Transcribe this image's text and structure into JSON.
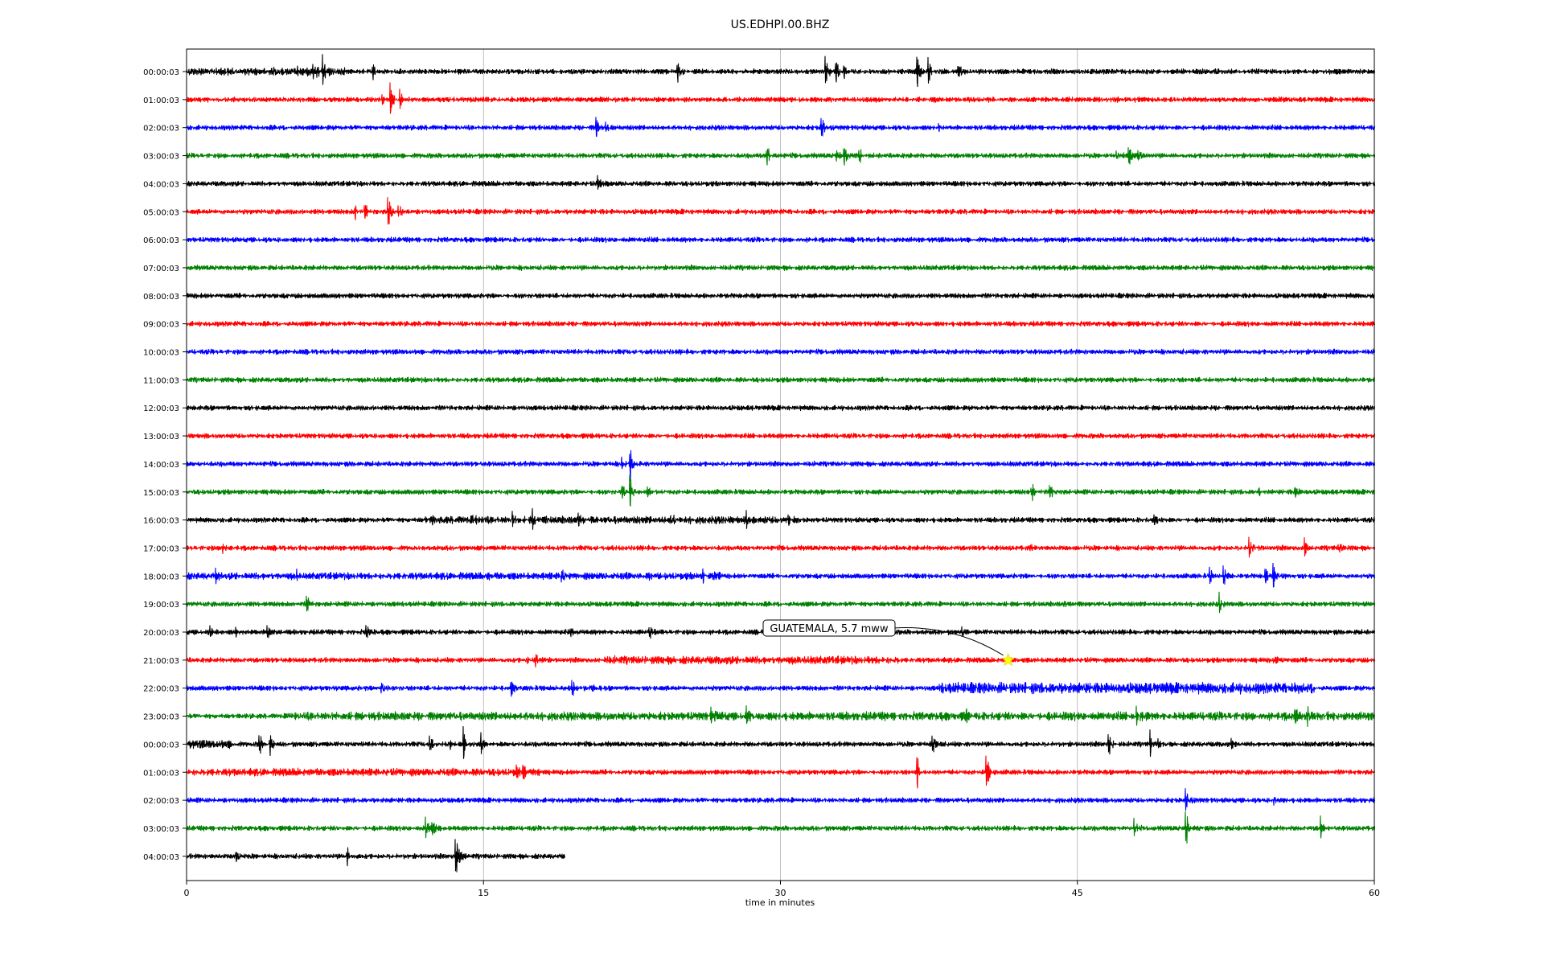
{
  "chart_data": {
    "type": "line",
    "title": "US.EDHPI.00.BHZ",
    "xlabel": "time in minutes",
    "ylabel": "",
    "xlim": [
      0,
      60
    ],
    "x_ticks": [
      "0",
      "15",
      "30",
      "45",
      "60"
    ],
    "x_tick_values": [
      0,
      15,
      30,
      45,
      60
    ],
    "grid": "vertical lines at x ticks",
    "row_labels": [
      "00:00:03",
      "01:00:03",
      "02:00:03",
      "03:00:03",
      "04:00:03",
      "05:00:03",
      "06:00:03",
      "07:00:03",
      "08:00:03",
      "09:00:03",
      "10:00:03",
      "11:00:03",
      "12:00:03",
      "13:00:03",
      "14:00:03",
      "15:00:03",
      "16:00:03",
      "17:00:03",
      "18:00:03",
      "19:00:03",
      "20:00:03",
      "21:00:03",
      "22:00:03",
      "23:00:03",
      "00:00:03",
      "01:00:03",
      "02:00:03",
      "03:00:03",
      "04:00:03"
    ],
    "row_colors": [
      "#000000",
      "#ff0000",
      "#0000ff",
      "#008000"
    ],
    "last_row_end_minute": 19.1,
    "spikes": [
      {
        "row": 0,
        "t": 5.5,
        "amp": 0.5
      },
      {
        "row": 0,
        "t": 6.4,
        "amp": 0.55
      },
      {
        "row": 0,
        "t": 6.9,
        "amp": 0.6
      },
      {
        "row": 0,
        "t": 9.4,
        "amp": 0.55
      },
      {
        "row": 0,
        "t": 24.8,
        "amp": 0.9
      },
      {
        "row": 0,
        "t": 32.3,
        "amp": 0.75
      },
      {
        "row": 0,
        "t": 32.8,
        "amp": 0.6
      },
      {
        "row": 0,
        "t": 33.2,
        "amp": 0.55
      },
      {
        "row": 0,
        "t": 36.9,
        "amp": 0.95
      },
      {
        "row": 0,
        "t": 37.5,
        "amp": 0.6
      },
      {
        "row": 0,
        "t": 39.0,
        "amp": 0.4
      },
      {
        "row": 1,
        "t": 9.9,
        "amp": 0.3
      },
      {
        "row": 1,
        "t": 10.3,
        "amp": 0.8
      },
      {
        "row": 1,
        "t": 10.8,
        "amp": 0.4
      },
      {
        "row": 2,
        "t": 20.7,
        "amp": 0.5
      },
      {
        "row": 2,
        "t": 21.2,
        "amp": 0.3
      },
      {
        "row": 2,
        "t": 32.1,
        "amp": 0.45
      },
      {
        "row": 2,
        "t": 38.0,
        "amp": 0.2
      },
      {
        "row": 3,
        "t": 29.3,
        "amp": 0.7
      },
      {
        "row": 3,
        "t": 32.8,
        "amp": 0.4
      },
      {
        "row": 3,
        "t": 33.2,
        "amp": 0.7
      },
      {
        "row": 3,
        "t": 34.0,
        "amp": 0.3
      },
      {
        "row": 3,
        "t": 47.0,
        "amp": 0.3
      },
      {
        "row": 3,
        "t": 47.6,
        "amp": 0.65
      },
      {
        "row": 3,
        "t": 48.1,
        "amp": 0.35
      },
      {
        "row": 4,
        "t": 20.8,
        "amp": 0.4
      },
      {
        "row": 5,
        "t": 8.5,
        "amp": 0.4
      },
      {
        "row": 5,
        "t": 9.0,
        "amp": 0.55
      },
      {
        "row": 5,
        "t": 10.2,
        "amp": 0.8
      },
      {
        "row": 5,
        "t": 10.7,
        "amp": 0.35
      },
      {
        "row": 14,
        "t": 22.4,
        "amp": 1.0
      },
      {
        "row": 14,
        "t": 22.0,
        "amp": 0.3
      },
      {
        "row": 15,
        "t": 22.0,
        "amp": 0.5
      },
      {
        "row": 15,
        "t": 22.4,
        "amp": 0.95
      },
      {
        "row": 15,
        "t": 23.3,
        "amp": 0.35
      },
      {
        "row": 15,
        "t": 42.7,
        "amp": 0.45
      },
      {
        "row": 15,
        "t": 43.6,
        "amp": 0.6
      },
      {
        "row": 15,
        "t": 56.0,
        "amp": 0.5
      },
      {
        "row": 15,
        "t": 54.2,
        "amp": 0.2
      },
      {
        "row": 16,
        "t": 12.4,
        "amp": 0.5
      },
      {
        "row": 16,
        "t": 14.5,
        "amp": 0.3
      },
      {
        "row": 16,
        "t": 16.5,
        "amp": 0.35
      },
      {
        "row": 16,
        "t": 17.5,
        "amp": 0.45
      },
      {
        "row": 16,
        "t": 19.8,
        "amp": 0.3
      },
      {
        "row": 16,
        "t": 20.6,
        "amp": 0.3
      },
      {
        "row": 16,
        "t": 24.5,
        "amp": 0.3
      },
      {
        "row": 16,
        "t": 28.3,
        "amp": 0.5
      },
      {
        "row": 16,
        "t": 30.4,
        "amp": 0.25
      },
      {
        "row": 16,
        "t": 48.9,
        "amp": 0.35
      },
      {
        "row": 17,
        "t": 1.8,
        "amp": 0.35
      },
      {
        "row": 17,
        "t": 11.6,
        "amp": 0.2
      },
      {
        "row": 17,
        "t": 42.6,
        "amp": 0.3
      },
      {
        "row": 17,
        "t": 53.7,
        "amp": 0.5
      },
      {
        "row": 17,
        "t": 56.5,
        "amp": 0.55
      },
      {
        "row": 17,
        "t": 58.2,
        "amp": 0.3
      },
      {
        "row": 18,
        "t": 1.5,
        "amp": 0.25
      },
      {
        "row": 18,
        "t": 5.6,
        "amp": 0.2
      },
      {
        "row": 18,
        "t": 15.0,
        "amp": 0.2
      },
      {
        "row": 18,
        "t": 18.9,
        "amp": 0.45
      },
      {
        "row": 18,
        "t": 23.4,
        "amp": 0.3
      },
      {
        "row": 18,
        "t": 26.1,
        "amp": 0.3
      },
      {
        "row": 18,
        "t": 26.6,
        "amp": 0.35
      },
      {
        "row": 18,
        "t": 51.7,
        "amp": 0.45
      },
      {
        "row": 18,
        "t": 52.4,
        "amp": 0.4
      },
      {
        "row": 18,
        "t": 54.5,
        "amp": 0.35
      },
      {
        "row": 18,
        "t": 54.9,
        "amp": 0.55
      },
      {
        "row": 19,
        "t": 6.1,
        "amp": 0.3
      },
      {
        "row": 19,
        "t": 52.2,
        "amp": 0.4
      },
      {
        "row": 19,
        "t": 44.3,
        "amp": 0.15
      },
      {
        "row": 20,
        "t": 1.2,
        "amp": 0.45
      },
      {
        "row": 20,
        "t": 2.5,
        "amp": 0.25
      },
      {
        "row": 20,
        "t": 4.1,
        "amp": 0.3
      },
      {
        "row": 20,
        "t": 9.1,
        "amp": 0.3
      },
      {
        "row": 20,
        "t": 19.4,
        "amp": 0.3
      },
      {
        "row": 20,
        "t": 23.4,
        "amp": 0.35
      },
      {
        "row": 20,
        "t": 39.2,
        "amp": 0.25
      },
      {
        "row": 21,
        "t": 17.6,
        "amp": 0.5
      },
      {
        "row": 21,
        "t": 17.2,
        "amp": 0.3
      },
      {
        "row": 21,
        "t": 54.9,
        "amp": 0.2
      },
      {
        "row": 22,
        "t": 9.8,
        "amp": 0.45
      },
      {
        "row": 22,
        "t": 16.4,
        "amp": 0.6
      },
      {
        "row": 22,
        "t": 19.5,
        "amp": 0.35
      },
      {
        "row": 22,
        "t": 20.5,
        "amp": 0.2
      },
      {
        "row": 22,
        "t": 56.0,
        "amp": 0.4
      },
      {
        "row": 23,
        "t": 26.5,
        "amp": 0.6
      },
      {
        "row": 23,
        "t": 28.3,
        "amp": 0.5
      },
      {
        "row": 23,
        "t": 39.3,
        "amp": 0.5
      },
      {
        "row": 23,
        "t": 48.0,
        "amp": 0.5
      },
      {
        "row": 23,
        "t": 56.0,
        "amp": 0.6
      },
      {
        "row": 23,
        "t": 56.6,
        "amp": 0.4
      },
      {
        "row": 24,
        "t": 3.7,
        "amp": 0.45
      },
      {
        "row": 24,
        "t": 4.2,
        "amp": 0.75
      },
      {
        "row": 24,
        "t": 12.3,
        "amp": 0.5
      },
      {
        "row": 24,
        "t": 13.3,
        "amp": 0.45
      },
      {
        "row": 24,
        "t": 14.0,
        "amp": 0.75
      },
      {
        "row": 24,
        "t": 14.9,
        "amp": 0.45
      },
      {
        "row": 24,
        "t": 37.7,
        "amp": 0.45
      },
      {
        "row": 24,
        "t": 46.6,
        "amp": 0.65
      },
      {
        "row": 24,
        "t": 48.7,
        "amp": 0.6
      },
      {
        "row": 24,
        "t": 49.1,
        "amp": 0.35
      },
      {
        "row": 24,
        "t": 52.8,
        "amp": 0.3
      },
      {
        "row": 25,
        "t": 16.7,
        "amp": 0.5
      },
      {
        "row": 25,
        "t": 17.0,
        "amp": 0.6
      },
      {
        "row": 25,
        "t": 36.9,
        "amp": 0.95
      },
      {
        "row": 25,
        "t": 40.4,
        "amp": 1.0
      },
      {
        "row": 26,
        "t": 50.5,
        "amp": 0.6
      },
      {
        "row": 26,
        "t": 54.9,
        "amp": 0.2
      },
      {
        "row": 27,
        "t": 12.1,
        "amp": 0.55
      },
      {
        "row": 27,
        "t": 12.4,
        "amp": 0.45
      },
      {
        "row": 27,
        "t": 47.9,
        "amp": 0.4
      },
      {
        "row": 27,
        "t": 50.5,
        "amp": 0.9
      },
      {
        "row": 27,
        "t": 57.3,
        "amp": 0.7
      },
      {
        "row": 28,
        "t": 2.5,
        "amp": 0.45
      },
      {
        "row": 28,
        "t": 8.1,
        "amp": 0.55
      },
      {
        "row": 28,
        "t": 13.6,
        "amp": 1.0
      },
      {
        "row": 28,
        "t": 13.8,
        "amp": 0.6
      }
    ],
    "noise_bands": [
      {
        "row": 0,
        "t0": 0,
        "t1": 8,
        "level": 1.6
      },
      {
        "row": 16,
        "t0": 12,
        "t1": 31,
        "level": 1.5
      },
      {
        "row": 18,
        "t0": 0,
        "t1": 27,
        "level": 1.4
      },
      {
        "row": 21,
        "t0": 21,
        "t1": 36,
        "level": 1.6
      },
      {
        "row": 22,
        "t0": 38,
        "t1": 57,
        "level": 2.2
      },
      {
        "row": 23,
        "t0": 5,
        "t1": 60,
        "level": 1.7
      },
      {
        "row": 24,
        "t0": 0,
        "t1": 2.5,
        "level": 1.7
      },
      {
        "row": 25,
        "t0": 0,
        "t1": 18,
        "level": 1.5
      }
    ],
    "annotation": {
      "text": "GUATEMALA, 5.7 mww",
      "row": 21,
      "t": 41.5,
      "marker": "star",
      "marker_color": "#ffff00"
    }
  }
}
